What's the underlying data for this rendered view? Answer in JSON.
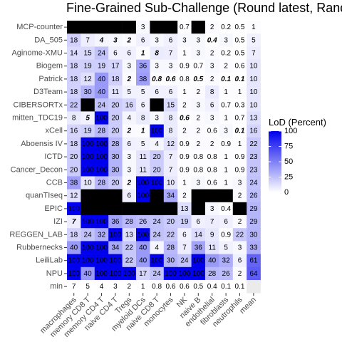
{
  "chart_data": {
    "type": "heatmap",
    "title": "Fine-Grained Sub-Challenge (Round latest, Rand",
    "xlabel": "",
    "ylabel": "",
    "columns": [
      "macrophages",
      "memory CD8 T",
      "memory CD4 T",
      "naive CD4 T",
      "Tregs",
      "myeloid DCs",
      "naive CD8 T",
      "monocytes",
      "NK",
      "naive B",
      "endothelial",
      "fibroblasts",
      "neutrophils",
      "mean"
    ],
    "rows": [
      "MCP-counter",
      "DA_505",
      "Aginome-XMU",
      "Biogem",
      "Patrick",
      "D3Team",
      "CIBERSORTx",
      "mitten_TDC19",
      "xCell",
      "Aboensis IV",
      "ICTD",
      "Cancer_Decon",
      "CCB",
      "quanTIseq",
      "EPIC",
      "IZI",
      "REGGEN_LAB",
      "Rubbernecks",
      "LeiliLab",
      "NPU",
      "min"
    ],
    "cells": [
      [
        {
          "v": null,
          "t": ""
        },
        {
          "v": null,
          "t": ""
        },
        {
          "v": null,
          "t": ""
        },
        {
          "v": null,
          "t": ""
        },
        {
          "v": null,
          "t": ""
        },
        {
          "v": 3,
          "t": "3"
        },
        {
          "v": null,
          "t": ""
        },
        {
          "v": null,
          "t": ""
        },
        {
          "v": 0.7,
          "t": "0.7"
        },
        {
          "v": null,
          "t": ""
        },
        {
          "v": 2,
          "t": "2"
        },
        {
          "v": 0.2,
          "t": "0.2"
        },
        {
          "v": 0.5,
          "t": "0.5"
        },
        {
          "v": 1,
          "t": "1"
        }
      ],
      [
        {
          "v": 18,
          "t": "18"
        },
        {
          "v": 7,
          "t": "7"
        },
        {
          "v": 4,
          "t": "4",
          "b": true
        },
        {
          "v": 3,
          "t": "3",
          "b": true
        },
        {
          "v": 2,
          "t": "2",
          "b": true
        },
        {
          "v": 6,
          "t": "6"
        },
        {
          "v": 3,
          "t": "3"
        },
        {
          "v": 6,
          "t": "6"
        },
        {
          "v": 3,
          "t": "3"
        },
        {
          "v": 3,
          "t": "3"
        },
        {
          "v": 0.4,
          "t": "0.4",
          "b": true
        },
        {
          "v": 3,
          "t": "3"
        },
        {
          "v": 0.5,
          "t": "0.5"
        },
        {
          "v": 5,
          "t": "5"
        }
      ],
      [
        {
          "v": 14,
          "t": "14"
        },
        {
          "v": 15,
          "t": "15"
        },
        {
          "v": 24,
          "t": "24"
        },
        {
          "v": 6,
          "t": "6"
        },
        {
          "v": 6,
          "t": "6"
        },
        {
          "v": 1,
          "t": "1",
          "b": true
        },
        {
          "v": 8,
          "t": "8",
          "b": true
        },
        {
          "v": 7,
          "t": "7"
        },
        {
          "v": 1,
          "t": "1"
        },
        {
          "v": 3,
          "t": "3"
        },
        {
          "v": 2,
          "t": "2"
        },
        {
          "v": 0.2,
          "t": "0.2"
        },
        {
          "v": 0.5,
          "t": "0.5"
        },
        {
          "v": 7,
          "t": "7"
        }
      ],
      [
        {
          "v": 18,
          "t": "18"
        },
        {
          "v": 19,
          "t": "19"
        },
        {
          "v": 19,
          "t": "19"
        },
        {
          "v": 17,
          "t": "17"
        },
        {
          "v": 3,
          "t": "3"
        },
        {
          "v": 36,
          "t": "36"
        },
        {
          "v": 3,
          "t": "3"
        },
        {
          "v": 3,
          "t": "3"
        },
        {
          "v": 0.9,
          "t": "0.9"
        },
        {
          "v": 0.7,
          "t": "0.7"
        },
        {
          "v": 3,
          "t": "3"
        },
        {
          "v": 2,
          "t": "2"
        },
        {
          "v": 0.6,
          "t": "0.6"
        },
        {
          "v": 10,
          "t": "10"
        }
      ],
      [
        {
          "v": 18,
          "t": "18"
        },
        {
          "v": 12,
          "t": "12"
        },
        {
          "v": 40,
          "t": "40"
        },
        {
          "v": 18,
          "t": "18"
        },
        {
          "v": 2,
          "t": "2",
          "b": true
        },
        {
          "v": 38,
          "t": "38"
        },
        {
          "v": 0.8,
          "t": "0.8",
          "b": true
        },
        {
          "v": 0.6,
          "t": "0.6",
          "b": true
        },
        {
          "v": 0.8,
          "t": "0.8"
        },
        {
          "v": 0.5,
          "t": "0.5",
          "b": true
        },
        {
          "v": 2,
          "t": "2"
        },
        {
          "v": 0.1,
          "t": "0.1",
          "b": true
        },
        {
          "v": 0.1,
          "t": "0.1",
          "b": true
        },
        {
          "v": 10,
          "t": "10"
        }
      ],
      [
        {
          "v": 18,
          "t": "18"
        },
        {
          "v": 30,
          "t": "30"
        },
        {
          "v": 40,
          "t": "40"
        },
        {
          "v": 11,
          "t": "11"
        },
        {
          "v": 5,
          "t": "5"
        },
        {
          "v": 5,
          "t": "5"
        },
        {
          "v": 6,
          "t": "6"
        },
        {
          "v": 6,
          "t": "6"
        },
        {
          "v": 1,
          "t": "1"
        },
        {
          "v": 2,
          "t": "2"
        },
        {
          "v": 8,
          "t": "8"
        },
        {
          "v": 1,
          "t": "1"
        },
        {
          "v": 1,
          "t": "1"
        },
        {
          "v": 10,
          "t": "10"
        }
      ],
      [
        {
          "v": 22,
          "t": "22"
        },
        {
          "v": null,
          "t": ""
        },
        {
          "v": 24,
          "t": "24"
        },
        {
          "v": 20,
          "t": "20"
        },
        {
          "v": 16,
          "t": "16"
        },
        {
          "v": 6,
          "t": "6"
        },
        {
          "v": null,
          "t": ""
        },
        {
          "v": 15,
          "t": "15"
        },
        {
          "v": 2,
          "t": "2"
        },
        {
          "v": 3,
          "t": "3"
        },
        {
          "v": 6,
          "t": "6"
        },
        {
          "v": 0.7,
          "t": "0.7"
        },
        {
          "v": 0.3,
          "t": "0.3"
        },
        {
          "v": 10,
          "t": "10"
        }
      ],
      [
        {
          "v": 8,
          "t": "8"
        },
        {
          "v": 5,
          "t": "5",
          "b": true
        },
        {
          "v": 100,
          "t": "100"
        },
        {
          "v": 20,
          "t": "20"
        },
        {
          "v": 4,
          "t": "4"
        },
        {
          "v": 8,
          "t": "8"
        },
        {
          "v": 3,
          "t": "3"
        },
        {
          "v": 8,
          "t": "8"
        },
        {
          "v": 0.6,
          "t": "0.6",
          "b": true
        },
        {
          "v": 2,
          "t": "2"
        },
        {
          "v": 3,
          "t": "3"
        },
        {
          "v": 1,
          "t": "1"
        },
        {
          "v": 0.7,
          "t": "0.7"
        },
        {
          "v": 13,
          "t": "13"
        }
      ],
      [
        {
          "v": 16,
          "t": "16"
        },
        {
          "v": 19,
          "t": "19"
        },
        {
          "v": 28,
          "t": "28"
        },
        {
          "v": 20,
          "t": "20"
        },
        {
          "v": 2,
          "t": "2",
          "b": true
        },
        {
          "v": 1,
          "t": "1",
          "b": true
        },
        {
          "v": 100,
          "t": "100"
        },
        {
          "v": 8,
          "t": "8"
        },
        {
          "v": 2,
          "t": "2"
        },
        {
          "v": 2,
          "t": "2"
        },
        {
          "v": 0.6,
          "t": "0.6"
        },
        {
          "v": 3,
          "t": "3"
        },
        {
          "v": 0.1,
          "t": "0.1",
          "b": true
        },
        {
          "v": 16,
          "t": "16"
        }
      ],
      [
        {
          "v": 18,
          "t": "18"
        },
        {
          "v": 100,
          "t": "100"
        },
        {
          "v": 100,
          "t": "100"
        },
        {
          "v": 28,
          "t": "28"
        },
        {
          "v": 6,
          "t": "6"
        },
        {
          "v": 5,
          "t": "5"
        },
        {
          "v": 4,
          "t": "4"
        },
        {
          "v": 12,
          "t": "12"
        },
        {
          "v": 0.9,
          "t": "0.9"
        },
        {
          "v": 2,
          "t": "2"
        },
        {
          "v": 2,
          "t": "2"
        },
        {
          "v": 0.9,
          "t": "0.9"
        },
        {
          "v": 1,
          "t": "1"
        },
        {
          "v": 22,
          "t": "22"
        }
      ],
      [
        {
          "v": 20,
          "t": "20"
        },
        {
          "v": 100,
          "t": "100"
        },
        {
          "v": 100,
          "t": "100"
        },
        {
          "v": 30,
          "t": "30"
        },
        {
          "v": 3,
          "t": "3"
        },
        {
          "v": 11,
          "t": "11"
        },
        {
          "v": 20,
          "t": "20"
        },
        {
          "v": 7,
          "t": "7"
        },
        {
          "v": 0.9,
          "t": "0.9"
        },
        {
          "v": 0.8,
          "t": "0.8"
        },
        {
          "v": 0.8,
          "t": "0.8"
        },
        {
          "v": 1,
          "t": "1"
        },
        {
          "v": 0.9,
          "t": "0.9"
        },
        {
          "v": 23,
          "t": "23"
        }
      ],
      [
        {
          "v": 20,
          "t": "20"
        },
        {
          "v": 100,
          "t": "100"
        },
        {
          "v": 100,
          "t": "100"
        },
        {
          "v": 30,
          "t": "30"
        },
        {
          "v": 3,
          "t": "3"
        },
        {
          "v": 11,
          "t": "11"
        },
        {
          "v": 20,
          "t": "20"
        },
        {
          "v": 7,
          "t": "7"
        },
        {
          "v": 0.9,
          "t": "0.9"
        },
        {
          "v": 0.8,
          "t": "0.8"
        },
        {
          "v": 0.8,
          "t": "0.8"
        },
        {
          "v": 1,
          "t": "1"
        },
        {
          "v": 0.9,
          "t": "0.9"
        },
        {
          "v": 23,
          "t": "23"
        }
      ],
      [
        {
          "v": 38,
          "t": "38"
        },
        {
          "v": 10,
          "t": "10"
        },
        {
          "v": 28,
          "t": "28"
        },
        {
          "v": 20,
          "t": "20"
        },
        {
          "v": 2,
          "t": "2",
          "b": true
        },
        {
          "v": 100,
          "t": "100"
        },
        {
          "v": 100,
          "t": "100"
        },
        {
          "v": 10,
          "t": "10"
        },
        {
          "v": 1,
          "t": "1"
        },
        {
          "v": 3,
          "t": "3"
        },
        {
          "v": 0.6,
          "t": "0.6"
        },
        {
          "v": 1,
          "t": "1"
        },
        {
          "v": 3,
          "t": "3"
        },
        {
          "v": 24,
          "t": "24"
        }
      ],
      [
        {
          "v": 12,
          "t": "12"
        },
        {
          "v": null,
          "t": ""
        },
        {
          "v": null,
          "t": ""
        },
        {
          "v": null,
          "t": ""
        },
        {
          "v": 6,
          "t": "6"
        },
        {
          "v": 100,
          "t": "100"
        },
        {
          "v": null,
          "t": ""
        },
        {
          "v": 34,
          "t": "34"
        },
        {
          "v": 2,
          "t": "2"
        },
        {
          "v": null,
          "t": ""
        },
        {
          "v": null,
          "t": ""
        },
        {
          "v": null,
          "t": ""
        },
        {
          "v": 2,
          "t": "2"
        },
        {
          "v": 26,
          "t": "26"
        }
      ],
      [
        {
          "v": 100,
          "t": "100"
        },
        {
          "v": null,
          "t": ""
        },
        {
          "v": null,
          "t": ""
        },
        {
          "v": null,
          "t": ""
        },
        {
          "v": null,
          "t": ""
        },
        {
          "v": null,
          "t": ""
        },
        {
          "v": null,
          "t": ""
        },
        {
          "v": null,
          "t": ""
        },
        {
          "v": 13,
          "t": "13"
        },
        {
          "v": null,
          "t": ""
        },
        {
          "v": 3,
          "t": "3"
        },
        {
          "v": 0.4,
          "t": "0.4"
        },
        {
          "v": null,
          "t": ""
        },
        {
          "v": 29,
          "t": "29"
        }
      ],
      [
        {
          "v": 7,
          "t": "7",
          "b": true
        },
        {
          "v": 100,
          "t": "100"
        },
        {
          "v": 100,
          "t": "100"
        },
        {
          "v": 36,
          "t": "36"
        },
        {
          "v": 28,
          "t": "28"
        },
        {
          "v": 26,
          "t": "26"
        },
        {
          "v": 24,
          "t": "24"
        },
        {
          "v": 20,
          "t": "20"
        },
        {
          "v": 19,
          "t": "19"
        },
        {
          "v": 6,
          "t": "6"
        },
        {
          "v": 7,
          "t": "7"
        },
        {
          "v": 6,
          "t": "6"
        },
        {
          "v": 2,
          "t": "2"
        },
        {
          "v": 29,
          "t": "29"
        }
      ],
      [
        {
          "v": 18,
          "t": "18"
        },
        {
          "v": 24,
          "t": "24"
        },
        {
          "v": 32,
          "t": "32"
        },
        {
          "v": 100,
          "t": "100"
        },
        {
          "v": 13,
          "t": "13"
        },
        {
          "v": 100,
          "t": "100"
        },
        {
          "v": 24,
          "t": "24"
        },
        {
          "v": 22,
          "t": "22"
        },
        {
          "v": 6,
          "t": "6"
        },
        {
          "v": 14,
          "t": "14"
        },
        {
          "v": 9,
          "t": "9"
        },
        {
          "v": 0.9,
          "t": "0.9"
        },
        {
          "v": 22,
          "t": "22"
        },
        {
          "v": 30,
          "t": "30"
        }
      ],
      [
        {
          "v": 40,
          "t": "40"
        },
        {
          "v": 100,
          "t": "100"
        },
        {
          "v": 100,
          "t": "100"
        },
        {
          "v": 34,
          "t": "34"
        },
        {
          "v": 22,
          "t": "22"
        },
        {
          "v": 40,
          "t": "40"
        },
        {
          "v": 4,
          "t": "4"
        },
        {
          "v": 28,
          "t": "28"
        },
        {
          "v": 7,
          "t": "7"
        },
        {
          "v": 36,
          "t": "36"
        },
        {
          "v": 11,
          "t": "11"
        },
        {
          "v": 5,
          "t": "5"
        },
        {
          "v": 3,
          "t": "3"
        },
        {
          "v": 33,
          "t": "33"
        }
      ],
      [
        {
          "v": 100,
          "t": "100"
        },
        {
          "v": 100,
          "t": "100"
        },
        {
          "v": 100,
          "t": "100"
        },
        {
          "v": 100,
          "t": "100"
        },
        {
          "v": 22,
          "t": "22"
        },
        {
          "v": 40,
          "t": "40"
        },
        {
          "v": 100,
          "t": "100"
        },
        {
          "v": 30,
          "t": "30"
        },
        {
          "v": 24,
          "t": "24"
        },
        {
          "v": 100,
          "t": "100"
        },
        {
          "v": 40,
          "t": "40"
        },
        {
          "v": 32,
          "t": "32"
        },
        {
          "v": 6,
          "t": "6"
        },
        {
          "v": 61,
          "t": "61"
        }
      ],
      [
        {
          "v": 100,
          "t": "100"
        },
        {
          "v": 40,
          "t": "40"
        },
        {
          "v": 100,
          "t": "100"
        },
        {
          "v": 100,
          "t": "100"
        },
        {
          "v": 100,
          "t": "100"
        },
        {
          "v": 17,
          "t": "17"
        },
        {
          "v": 24,
          "t": "24"
        },
        {
          "v": 100,
          "t": "100"
        },
        {
          "v": 100,
          "t": "100"
        },
        {
          "v": 100,
          "t": "100"
        },
        {
          "v": 28,
          "t": "28"
        },
        {
          "v": 26,
          "t": "26"
        },
        {
          "v": 2,
          "t": "2"
        },
        {
          "v": 64,
          "t": "64"
        }
      ],
      [
        {
          "v": null,
          "t": "7",
          "w": true
        },
        {
          "v": null,
          "t": "5",
          "w": true
        },
        {
          "v": null,
          "t": "4",
          "w": true
        },
        {
          "v": null,
          "t": "3",
          "w": true
        },
        {
          "v": null,
          "t": "2",
          "w": true
        },
        {
          "v": null,
          "t": "1",
          "w": true
        },
        {
          "v": null,
          "t": "0.8",
          "w": true
        },
        {
          "v": null,
          "t": "0.6",
          "w": true
        },
        {
          "v": null,
          "t": "0.6",
          "w": true
        },
        {
          "v": null,
          "t": "0.5",
          "w": true
        },
        {
          "v": null,
          "t": "0.4",
          "w": true
        },
        {
          "v": null,
          "t": "0.1",
          "w": true
        },
        {
          "v": null,
          "t": "0.1",
          "w": true
        },
        {
          "v": null,
          "t": "",
          "g": true
        }
      ]
    ],
    "legend": {
      "title": "LoD (Percent)",
      "ticks": [
        100,
        75,
        50,
        25,
        0
      ],
      "low_color": "#ffffff",
      "high_color": "#0000ee"
    },
    "missing_color": "#000000",
    "grid": false
  }
}
